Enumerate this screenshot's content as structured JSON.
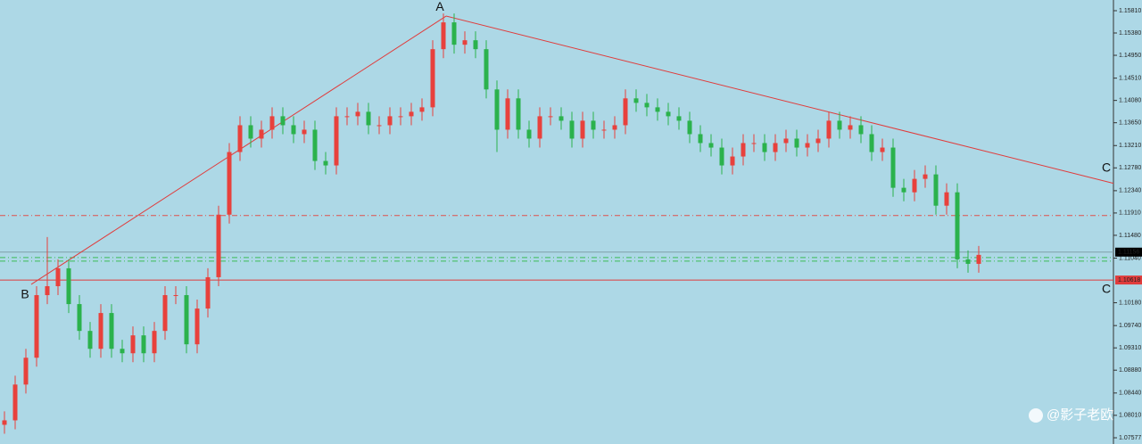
{
  "chart_data": {
    "type": "candlestick",
    "up_color": "#e8413c",
    "down_color": "#2bb24c",
    "background": "#add8e6",
    "ylim": [
      1.07457,
      1.16016
    ],
    "yticks": [
      {
        "value": 1.1581,
        "label": "1.15810"
      },
      {
        "value": 1.1538,
        "label": "1.15380"
      },
      {
        "value": 1.1495,
        "label": "1.14950"
      },
      {
        "value": 1.1451,
        "label": "1.14510"
      },
      {
        "value": 1.1408,
        "label": "1.14080"
      },
      {
        "value": 1.1365,
        "label": "1.13650"
      },
      {
        "value": 1.1321,
        "label": "1.13210"
      },
      {
        "value": 1.1278,
        "label": "1.12780"
      },
      {
        "value": 1.1234,
        "label": "1.12340"
      },
      {
        "value": 1.1191,
        "label": "1.11910"
      },
      {
        "value": 1.1148,
        "label": "1.11480"
      },
      {
        "value": 1.1104,
        "label": "1.11040"
      },
      {
        "value": 1.1018,
        "label": "1.10180"
      },
      {
        "value": 1.0974,
        "label": "1.09740"
      },
      {
        "value": 1.0931,
        "label": "1.09310"
      },
      {
        "value": 1.0888,
        "label": "1.08880"
      },
      {
        "value": 1.0844,
        "label": "1.08440"
      },
      {
        "value": 1.0801,
        "label": "1.08010"
      },
      1.07577
    ],
    "open": [
      1.07827,
      1.07913,
      1.08603,
      1.0912,
      1.10327,
      1.10499,
      1.10844,
      1.10154,
      1.09637,
      1.09292,
      1.09982,
      1.09292,
      1.09206,
      1.09551,
      1.09206,
      1.09637,
      1.10327,
      1.10327,
      1.09379,
      1.10068,
      1.10672,
      1.11878,
      1.13085,
      1.13602,
      1.13344,
      1.13516,
      1.13775,
      1.13602,
      1.1343,
      1.13516,
      1.12913,
      1.12827,
      1.13775,
      1.13775,
      1.13861,
      1.13602,
      1.13602,
      1.13775,
      1.13775,
      1.13861,
      1.13947,
      1.15068,
      1.15585,
      1.15154,
      1.1524,
      1.15068,
      1.14292,
      1.13516,
      1.1412,
      1.13516,
      1.13344,
      1.13775,
      1.13775,
      1.13689,
      1.13344,
      1.13689,
      1.13516,
      1.13516,
      1.13602,
      1.1412,
      1.14033,
      1.13947,
      1.13861,
      1.13775,
      1.13689,
      1.1343,
      1.13258,
      1.13171,
      1.12827,
      1.12999,
      1.13258,
      1.13258,
      1.13085,
      1.13258,
      1.13344,
      1.13171,
      1.13258,
      1.13344,
      1.13689,
      1.13516,
      1.13602,
      1.1343,
      1.13085,
      1.13171,
      1.12396,
      1.12309,
      1.12568,
      1.12654,
      1.12051,
      1.12309,
      1.11016,
      1.1093
    ],
    "high": [
      1.08086,
      1.08775,
      1.09292,
      1.10499,
      1.11447,
      1.11016,
      1.11016,
      1.10327,
      1.0981,
      1.10154,
      1.10154,
      1.09465,
      1.09723,
      1.09723,
      1.0981,
      1.10499,
      1.10499,
      1.10499,
      1.10241,
      1.10844,
      1.12051,
      1.13258,
      1.13775,
      1.13775,
      1.13689,
      1.13947,
      1.13947,
      1.13775,
      1.13689,
      1.13689,
      1.13085,
      1.13947,
      1.13947,
      1.14033,
      1.14033,
      1.13775,
      1.13947,
      1.13947,
      1.14033,
      1.1412,
      1.1524,
      1.15757,
      1.15757,
      1.15413,
      1.15413,
      1.1524,
      1.14464,
      1.14292,
      1.14292,
      1.13689,
      1.13947,
      1.13947,
      1.13947,
      1.13861,
      1.13861,
      1.13861,
      1.13689,
      1.13775,
      1.14292,
      1.14292,
      1.14206,
      1.1412,
      1.14033,
      1.13947,
      1.13861,
      1.13602,
      1.1343,
      1.13344,
      1.13171,
      1.1343,
      1.1343,
      1.1343,
      1.1343,
      1.13516,
      1.13516,
      1.1343,
      1.13516,
      1.13861,
      1.13861,
      1.13775,
      1.13775,
      1.13602,
      1.13344,
      1.13344,
      1.12568,
      1.1274,
      1.12827,
      1.12827,
      1.12482,
      1.12482,
      1.11189,
      1.11275
    ],
    "low": [
      1.07655,
      1.07741,
      1.0843,
      1.08948,
      1.10154,
      1.10327,
      1.09982,
      1.09465,
      1.0912,
      1.0912,
      1.0912,
      1.09034,
      1.09034,
      1.09034,
      1.09034,
      1.09465,
      1.10154,
      1.09206,
      1.09206,
      1.09896,
      1.10499,
      1.11706,
      1.12913,
      1.13171,
      1.13171,
      1.13344,
      1.1343,
      1.13258,
      1.13258,
      1.1274,
      1.12654,
      1.12654,
      1.13602,
      1.13602,
      1.1343,
      1.1343,
      1.1343,
      1.13602,
      1.13602,
      1.13689,
      1.13775,
      1.14895,
      1.14982,
      1.14982,
      1.14895,
      1.1412,
      1.13085,
      1.13344,
      1.13344,
      1.13171,
      1.13171,
      1.13602,
      1.13516,
      1.13171,
      1.13171,
      1.13344,
      1.13344,
      1.13344,
      1.1343,
      1.13861,
      1.13775,
      1.13689,
      1.13602,
      1.13516,
      1.13258,
      1.13085,
      1.12999,
      1.12654,
      1.12654,
      1.12827,
      1.13085,
      1.12913,
      1.12913,
      1.13085,
      1.12999,
      1.12999,
      1.13085,
      1.13171,
      1.13344,
      1.13344,
      1.13258,
      1.12913,
      1.12913,
      1.12223,
      1.12137,
      1.12137,
      1.12396,
      1.11878,
      1.11878,
      1.10844,
      1.10758,
      1.10758
    ],
    "close": [
      1.07913,
      1.08603,
      1.0912,
      1.10327,
      1.10499,
      1.10844,
      1.10154,
      1.09637,
      1.09292,
      1.09982,
      1.09292,
      1.09206,
      1.09551,
      1.09206,
      1.09637,
      1.10327,
      1.10327,
      1.09379,
      1.10068,
      1.10672,
      1.11878,
      1.13085,
      1.13602,
      1.13344,
      1.13516,
      1.13775,
      1.13602,
      1.1343,
      1.13516,
      1.12913,
      1.12827,
      1.13775,
      1.13775,
      1.13861,
      1.13602,
      1.13602,
      1.13775,
      1.13775,
      1.13861,
      1.13947,
      1.15068,
      1.15585,
      1.15154,
      1.1524,
      1.15068,
      1.14292,
      1.13516,
      1.1412,
      1.13516,
      1.13344,
      1.13775,
      1.13775,
      1.13689,
      1.13344,
      1.13689,
      1.13516,
      1.13516,
      1.13602,
      1.1412,
      1.14033,
      1.13947,
      1.13861,
      1.13775,
      1.13689,
      1.1343,
      1.13258,
      1.13171,
      1.12827,
      1.12999,
      1.13258,
      1.13258,
      1.13085,
      1.13258,
      1.13344,
      1.13171,
      1.13258,
      1.13344,
      1.13689,
      1.13516,
      1.13602,
      1.1343,
      1.13085,
      1.13171,
      1.12396,
      1.12309,
      1.12568,
      1.12654,
      1.12051,
      1.12309,
      1.11016,
      1.1093,
      1.11103
    ],
    "levels": [
      {
        "value": 1.11861,
        "color": "#e0504c",
        "style": "dashdot"
      },
      {
        "value": 1.11156,
        "color": "#7fa0a8",
        "style": "solid",
        "label": "1.11156",
        "label_bg": "#000000"
      },
      {
        "value": 1.11051,
        "color": "#3dbb55",
        "style": "dashdot"
      },
      {
        "value": 1.10982,
        "color": "#3dbb55",
        "style": "dashdot"
      },
      {
        "value": 1.10618,
        "color": "#e03c3c",
        "style": "solid",
        "label": "1.10618",
        "label_bg": "#e03c3c"
      }
    ],
    "trendline": {
      "color": "#e03c3c",
      "points": [
        {
          "label": "B",
          "value": 1.10534
        },
        {
          "label": "A",
          "value": 1.15706
        },
        {
          "label": "C",
          "value": 1.12482
        }
      ]
    },
    "annotations": [
      "C"
    ],
    "watermark": "@影子老欧"
  }
}
